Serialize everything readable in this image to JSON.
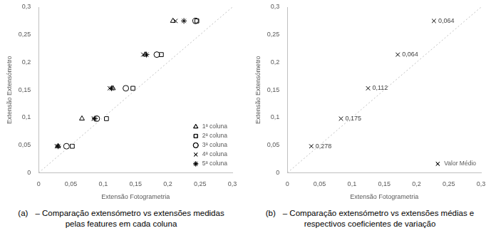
{
  "chart_data": [
    {
      "type": "scatter",
      "caption": {
        "label": "(a)",
        "text": "– Comparação extensómetro vs extensões medidas pelas features em cada coluna"
      },
      "x_label": "Extensão Fotogrametria",
      "y_label": "Extensão Extensómetro",
      "xlim": [
        0,
        0.3
      ],
      "ylim": [
        0,
        0.3
      ],
      "xticks": [
        0,
        {
          "value": 0.05,
          "label": "0,05"
        },
        {
          "value": 0.1,
          "label": "0,1"
        },
        {
          "value": 0.15,
          "label": "0,15"
        },
        {
          "value": 0.2,
          "label": "0,2"
        },
        {
          "value": 0.25,
          "label": "0,25"
        },
        {
          "value": 0.3,
          "label": "0,3"
        }
      ],
      "yticks": [
        0,
        {
          "value": 0.05,
          "label": "0,05"
        },
        {
          "value": 0.1,
          "label": "0,1"
        },
        {
          "value": 0.15,
          "label": "0,15"
        },
        {
          "value": 0.2,
          "label": "0,2"
        },
        {
          "value": 0.25,
          "label": "0,25"
        },
        {
          "value": 0.3,
          "label": "0,3"
        }
      ],
      "grid": false,
      "legend": "lower right",
      "reference_line": {
        "x": [
          0,
          0.3
        ],
        "y": [
          0,
          0.3
        ],
        "color": "#bfbfbf",
        "line_style": "dotted"
      },
      "series": [
        {
          "name": "1ª coluna",
          "marker": "triangle",
          "color": "#000000",
          "x": [
            0.03,
            0.067,
            0.115,
            0.165,
            0.208
          ],
          "values": [
            0.048,
            0.098,
            0.153,
            0.214,
            0.275
          ]
        },
        {
          "name": "2ª coluna",
          "marker": "square",
          "color": "#000000",
          "x": [
            0.052,
            0.105,
            0.146,
            0.19,
            0.245
          ],
          "values": [
            0.048,
            0.098,
            0.153,
            0.214,
            0.275
          ]
        },
        {
          "name": "3ª coluna",
          "marker": "circle",
          "color": "#000000",
          "x": [
            0.043,
            0.09,
            0.135,
            0.183,
            0.243
          ],
          "values": [
            0.048,
            0.098,
            0.153,
            0.214,
            0.275
          ]
        },
        {
          "name": "4ª coluna",
          "marker": "x",
          "color": "#000000",
          "x": [
            0.028,
            0.085,
            0.11,
            0.162,
            0.212
          ],
          "values": [
            0.048,
            0.098,
            0.153,
            0.214,
            0.275
          ]
        },
        {
          "name": "5ª coluna",
          "marker": "star",
          "color": "#000000",
          "x": [
            0.03,
            0.087,
            0.113,
            0.167,
            0.225
          ],
          "values": [
            0.048,
            0.098,
            0.153,
            0.214,
            0.275
          ]
        }
      ]
    },
    {
      "type": "scatter",
      "caption": {
        "label": "(b)",
        "text": "– Comparação extensómetro vs extensões médias e respectivos coeficientes de variação"
      },
      "x_label": "Extensão Fotogrametria",
      "y_label": "Extensão Extensómetro",
      "xlim": [
        0,
        0.3
      ],
      "ylim": [
        0,
        0.3
      ],
      "xticks": [
        0,
        {
          "value": 0.05,
          "label": "0,05"
        },
        {
          "value": 0.1,
          "label": "0,1"
        },
        {
          "value": 0.15,
          "label": "0,15"
        },
        {
          "value": 0.2,
          "label": "0,2"
        },
        {
          "value": 0.25,
          "label": "0,25"
        },
        {
          "value": 0.3,
          "label": "0,3"
        }
      ],
      "yticks": [
        0,
        {
          "value": 0.05,
          "label": "0,05"
        },
        {
          "value": 0.1,
          "label": "0,1"
        },
        {
          "value": 0.15,
          "label": "0,15"
        },
        {
          "value": 0.2,
          "label": "0,2"
        },
        {
          "value": 0.25,
          "label": "0,25"
        },
        {
          "value": 0.3,
          "label": "0,3"
        }
      ],
      "grid": false,
      "legend": "lower right",
      "reference_line": {
        "x": [
          0,
          0.3
        ],
        "y": [
          0,
          0.3
        ],
        "color": "#bfbfbf",
        "line_style": "dotted"
      },
      "series": [
        {
          "name": "Valor Médio",
          "marker": "x",
          "color": "#000000",
          "x": [
            0.037,
            0.083,
            0.125,
            0.171,
            0.227
          ],
          "values": [
            0.048,
            0.098,
            0.153,
            0.214,
            0.275
          ],
          "cv": [
            0.278,
            0.175,
            0.112,
            0.064,
            0.064
          ],
          "cv_labels": [
            "0,278",
            "0,175",
            "0,112",
            "0,064",
            "0,064"
          ]
        }
      ]
    }
  ]
}
